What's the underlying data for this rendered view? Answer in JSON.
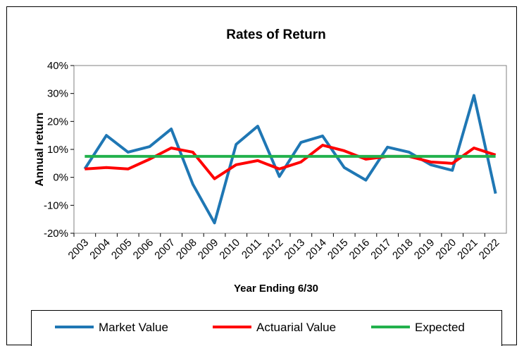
{
  "chart_data": {
    "type": "line",
    "title": "Rates of Return",
    "x_label": "Year Ending 6/30",
    "y_label": "Annual return",
    "categories": [
      "2003",
      "2004",
      "2005",
      "2006",
      "2007",
      "2008",
      "2009",
      "2010",
      "2011",
      "2012",
      "2013",
      "2014",
      "2015",
      "2016",
      "2017",
      "2018",
      "2019",
      "2020",
      "2021",
      "2022"
    ],
    "series": [
      {
        "name": "Market Value",
        "color": "#1f77b4",
        "values": [
          3,
          15,
          9,
          11,
          17.3,
          -2.5,
          -16.3,
          11.8,
          18.3,
          0.3,
          12.5,
          14.8,
          3.5,
          -1,
          10.8,
          9,
          4.5,
          2.5,
          29.3,
          -5.8
        ]
      },
      {
        "name": "Actuarial Value",
        "color": "#ff0000",
        "values": [
          3,
          3.5,
          3,
          6.5,
          10.5,
          9,
          -0.5,
          4.5,
          6,
          3,
          5.5,
          11.5,
          9.5,
          6.5,
          7.5,
          7.5,
          5.5,
          5,
          10.5,
          8
        ]
      },
      {
        "name": "Expected",
        "color": "#22b14c",
        "values": [
          7.5,
          7.5,
          7.5,
          7.5,
          7.5,
          7.5,
          7.5,
          7.5,
          7.5,
          7.5,
          7.5,
          7.5,
          7.5,
          7.5,
          7.5,
          7.5,
          7.5,
          7.5,
          7.5,
          7.5
        ]
      }
    ],
    "ylim": [
      -20,
      40
    ],
    "yticks": [
      {
        "value": -20,
        "label": "-20%"
      },
      {
        "value": -10,
        "label": "-10%"
      },
      {
        "value": 0,
        "label": "0%"
      },
      {
        "value": 10,
        "label": "10%"
      },
      {
        "value": 20,
        "label": "20%"
      },
      {
        "value": 30,
        "label": "30%"
      },
      {
        "value": 40,
        "label": "40%"
      }
    ],
    "legend": "bottom"
  }
}
